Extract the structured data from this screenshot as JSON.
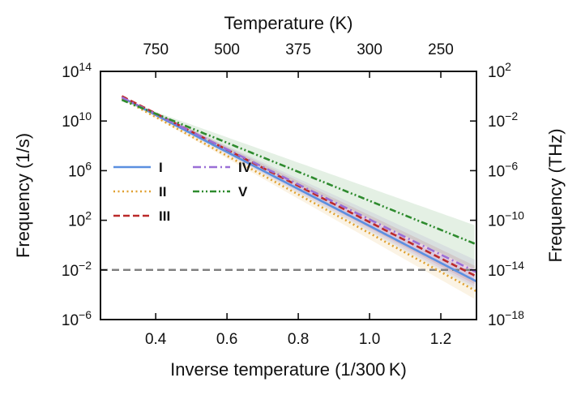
{
  "chart_data": {
    "type": "line",
    "title": "",
    "xlabel": "Inverse temperature (1/300 K)",
    "ylabel": "Frequency (1/s)",
    "x2label": "Temperature (K)",
    "y2label": "Frequency (THz)",
    "xlim": [
      0.245,
      1.3
    ],
    "ylim_log10": [
      -6,
      14
    ],
    "x_ticks": [
      {
        "value": 0.4,
        "label": "0.4"
      },
      {
        "value": 0.6,
        "label": "0.6"
      },
      {
        "value": 0.8,
        "label": "0.8"
      },
      {
        "value": 1.0,
        "label": "1.0"
      },
      {
        "value": 1.2,
        "label": "1.2"
      }
    ],
    "y_ticks": [
      {
        "exp": 14,
        "label": "10",
        "sup": "14"
      },
      {
        "exp": 10,
        "label": "10",
        "sup": "10"
      },
      {
        "exp": 6,
        "label": "10",
        "sup": "6"
      },
      {
        "exp": 2,
        "label": "10",
        "sup": "2"
      },
      {
        "exp": -2,
        "label": "10",
        "sup": "−2"
      },
      {
        "exp": -6,
        "label": "10",
        "sup": "−6"
      }
    ],
    "x2_ticks": [
      {
        "temperature": 750,
        "label": "750"
      },
      {
        "temperature": 500,
        "label": "500"
      },
      {
        "temperature": 375,
        "label": "375"
      },
      {
        "temperature": 300,
        "label": "300"
      },
      {
        "temperature": 250,
        "label": "250"
      }
    ],
    "y2_ticks": [
      {
        "exp": 14,
        "label": "10",
        "sup": "2"
      },
      {
        "exp": 10,
        "label": "10",
        "sup": "−2"
      },
      {
        "exp": 6,
        "label": "10",
        "sup": "−6"
      },
      {
        "exp": 2,
        "label": "10",
        "sup": "−10"
      },
      {
        "exp": -2,
        "label": "10",
        "sup": "−14"
      },
      {
        "exp": -6,
        "label": "10",
        "sup": "−18"
      }
    ],
    "reference_line": {
      "log10_value": -2,
      "color": "#808080",
      "style": "dashed"
    },
    "legend_position": "center-left",
    "series": [
      {
        "name": "I",
        "color": "#5b8fe0",
        "dash": "solid",
        "log10_prefactor": 11.9,
        "barrier_slope": 14.9,
        "band_low_slope": 14.3,
        "band_high_slope": 15.6
      },
      {
        "name": "II",
        "color": "#e0a030",
        "dash": "dotted",
        "log10_prefactor": 11.8,
        "barrier_slope": 15.6,
        "band_low_slope": 14.8,
        "band_high_slope": 16.3
      },
      {
        "name": "III",
        "color": "#bb2a2a",
        "dash": "dashed",
        "log10_prefactor": 12.0,
        "barrier_slope": 14.6,
        "band_low_slope": 13.8,
        "band_high_slope": 15.3
      },
      {
        "name": "IV",
        "color": "#9a6fd6",
        "dash": "dashdot",
        "log10_prefactor": 11.9,
        "barrier_slope": 14.15,
        "band_low_slope": 13.2,
        "band_high_slope": 15.4
      },
      {
        "name": "V",
        "color": "#2e8b2e",
        "dash": "dashdotdot",
        "log10_prefactor": 11.7,
        "barrier_slope": 11.7,
        "band_low_slope": 10.2,
        "band_high_slope": 13.8
      }
    ],
    "x_start": 0.305,
    "x_end": 1.3
  }
}
